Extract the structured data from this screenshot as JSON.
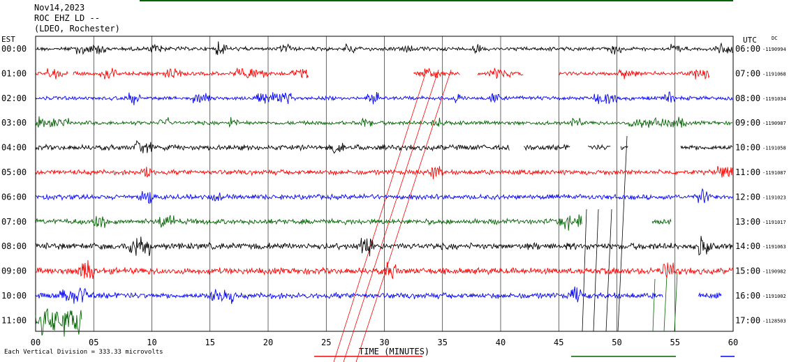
{
  "header": {
    "date": "Nov14,2023",
    "station": "ROC EHZ LD --",
    "network": "(LDEO, Rochester)"
  },
  "left_tz": "EST",
  "right_tz": "UTC",
  "dc_label": "DC",
  "footer": "Each Vertical Division = 333.33 microvolts",
  "colors": {
    "trace_cycle": [
      "#000000",
      "#ff0000",
      "#0000ff",
      "#006400"
    ],
    "grid": "#000000",
    "green_bar": "#006400",
    "blue_bar": "#0000ff"
  },
  "chart_data": {
    "type": "line",
    "title": "",
    "xlabel": "TIME (MINUTES)",
    "ylabel": "",
    "xlim": [
      0,
      60
    ],
    "x_ticks": [
      "00",
      "05",
      "10",
      "15",
      "20",
      "25",
      "30",
      "35",
      "40",
      "45",
      "50",
      "55",
      "60"
    ],
    "grid": true,
    "rows": [
      {
        "est": "00:00",
        "utc": "06:00",
        "dc": "-1190994",
        "color": "#000000",
        "end_min": 60,
        "gaps": [],
        "amp": 1.0,
        "bursts": [
          [
            3.5,
            6
          ],
          [
            9.5,
            11
          ],
          [
            15.5,
            16.5
          ],
          [
            21,
            22
          ],
          [
            26.5,
            27.5
          ],
          [
            31.5,
            32.5
          ],
          [
            37.5,
            38.5
          ],
          [
            49.5,
            50.5
          ],
          [
            54.5,
            55.5
          ],
          [
            58.5,
            60
          ]
        ]
      },
      {
        "est": "01:00",
        "utc": "07:00",
        "dc": "-1191068",
        "color": "#ff0000",
        "end_min": 58,
        "gaps": [
          [
            2.8,
            3.2
          ],
          [
            23.5,
            32.5
          ],
          [
            36.5,
            38
          ],
          [
            42,
            45
          ]
        ],
        "amp": 1.0,
        "bursts": [
          [
            1,
            2.5
          ],
          [
            5.5,
            7
          ],
          [
            11,
            12.5
          ],
          [
            17,
            20
          ],
          [
            22,
            23.5
          ],
          [
            33,
            35
          ],
          [
            39,
            41
          ],
          [
            50,
            52
          ],
          [
            56,
            58
          ]
        ]
      },
      {
        "est": "02:00",
        "utc": "08:00",
        "dc": "-1191034",
        "color": "#0000ff",
        "end_min": 60,
        "gaps": [],
        "amp": 1.0,
        "bursts": [
          [
            8,
            9
          ],
          [
            13.5,
            15
          ],
          [
            19,
            22
          ],
          [
            28.5,
            29.5
          ],
          [
            36,
            37
          ],
          [
            39,
            40
          ],
          [
            48,
            50
          ],
          [
            54,
            55
          ]
        ]
      },
      {
        "est": "03:00",
        "utc": "09:00",
        "dc": "-1190987",
        "color": "#006400",
        "end_min": 60,
        "gaps": [],
        "amp": 1.0,
        "bursts": [
          [
            0,
            3
          ],
          [
            10.5,
            11.5
          ],
          [
            16.5,
            17.5
          ],
          [
            28,
            29
          ],
          [
            34,
            35
          ],
          [
            46,
            47
          ],
          [
            51,
            56
          ]
        ]
      },
      {
        "est": "04:00",
        "utc": "10:00",
        "dc": "-1191058",
        "color": "#000000",
        "end_min": 60,
        "gaps": [
          [
            40.8,
            42
          ],
          [
            46,
            47.5
          ],
          [
            49.5,
            50.3
          ],
          [
            51,
            55.5
          ]
        ],
        "amp": 1.4,
        "bursts": [
          [
            8.5,
            10
          ],
          [
            25.5,
            26.5
          ]
        ]
      },
      {
        "est": "05:00",
        "utc": "11:00",
        "dc": "-1191087",
        "color": "#ff0000",
        "end_min": 60,
        "gaps": [],
        "amp": 1.3,
        "bursts": [
          [
            9,
            10
          ],
          [
            34,
            35
          ],
          [
            58.5,
            60
          ]
        ]
      },
      {
        "est": "06:00",
        "utc": "12:00",
        "dc": "-1191023",
        "color": "#0000ff",
        "end_min": 60,
        "gaps": [],
        "amp": 1.3,
        "bursts": [
          [
            9,
            10
          ],
          [
            15,
            16
          ],
          [
            57,
            58
          ]
        ]
      },
      {
        "est": "07:00",
        "utc": "13:00",
        "dc": "-1191017",
        "color": "#006400",
        "end_min": 54.7,
        "gaps": [
          [
            47,
            53
          ]
        ],
        "amp": 1.4,
        "bursts": [
          [
            5,
            6
          ],
          [
            10.5,
            12
          ],
          [
            45,
            47
          ]
        ]
      },
      {
        "est": "08:00",
        "utc": "14:00",
        "dc": "-1191063",
        "color": "#000000",
        "end_min": 60,
        "gaps": [],
        "amp": 1.7,
        "bursts": [
          [
            8,
            10
          ],
          [
            28,
            29
          ],
          [
            57,
            58
          ]
        ]
      },
      {
        "est": "09:00",
        "utc": "15:00",
        "dc": "-1190982",
        "color": "#ff0000",
        "end_min": 60,
        "gaps": [],
        "amp": 1.7,
        "bursts": [
          [
            3.5,
            5
          ],
          [
            30,
            31
          ],
          [
            54,
            55
          ]
        ]
      },
      {
        "est": "10:00",
        "utc": "16:00",
        "dc": "-1191002",
        "color": "#0000ff",
        "end_min": 59,
        "gaps": [
          [
            54,
            57
          ]
        ],
        "amp": 1.5,
        "bursts": [
          [
            2,
            5
          ],
          [
            15,
            17
          ],
          [
            46,
            47
          ]
        ]
      },
      {
        "est": "11:00",
        "utc": "17:00",
        "dc": "-1128503",
        "color": "#006400",
        "end_min": 4,
        "gaps": [],
        "amp": 2.6,
        "bursts": [
          [
            0.5,
            4
          ]
        ]
      }
    ]
  }
}
